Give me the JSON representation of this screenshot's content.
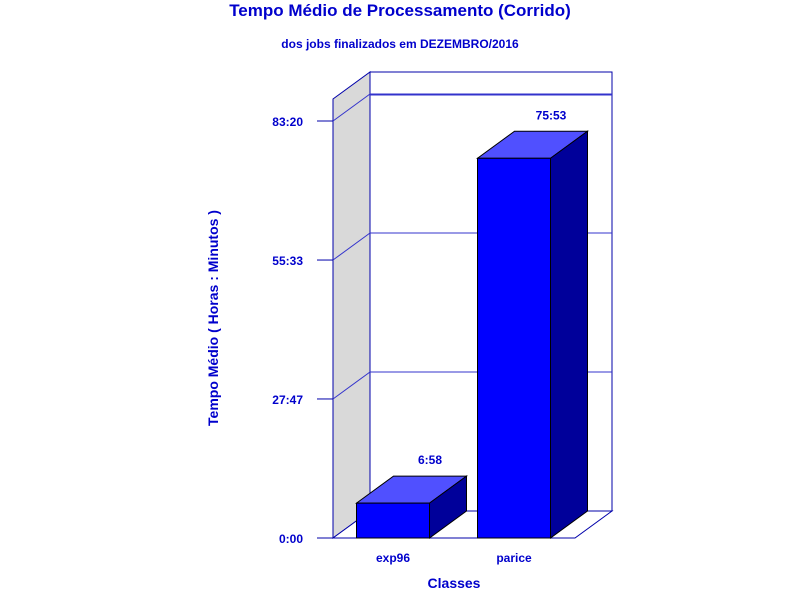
{
  "colors": {
    "text": "#0000cc",
    "axis": "#0000aa",
    "bar_front": "#0000ff",
    "bar_top": "#5050ff",
    "bar_side": "#00009a",
    "wall": "#d9d9d9",
    "grid": "#3333cc"
  },
  "chart_data": {
    "type": "bar",
    "title": "Tempo Médio de Processamento (Corrido)",
    "subtitle": "dos jobs finalizados em DEZEMBRO/2016",
    "xlabel": "Classes",
    "ylabel": "Tempo Médio ( Horas : Minutos )",
    "categories": [
      "exp96",
      "parice"
    ],
    "values": [
      6.9667,
      75.8833
    ],
    "value_labels": [
      "6:58",
      "75:53"
    ],
    "ylim": [
      0,
      83.3333
    ],
    "yticks": [
      0,
      27.7833,
      55.55,
      83.3333
    ],
    "ytick_labels": [
      "0:00",
      "27:47",
      "55:33",
      "83:20"
    ],
    "grid": true,
    "style": "3d"
  }
}
